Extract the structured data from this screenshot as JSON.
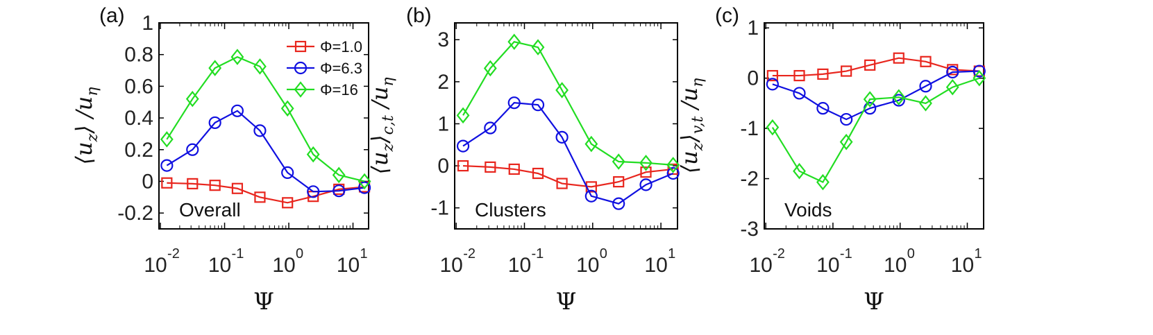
{
  "chart_data": [
    {
      "type": "line",
      "panel_label": "(a)",
      "region_label": "Overall",
      "ylabel": {
        "pre": "⟨",
        "var": "u",
        "varsub": "z",
        "mid": "⟩ /",
        "den": "u",
        "densub": "η"
      },
      "xlabel": "Ψ",
      "x": [
        0.0126,
        0.0316,
        0.0708,
        0.158,
        0.355,
        0.955,
        2.4,
        6.03,
        15.1
      ],
      "xscale": "log",
      "xlim": [
        0.0095,
        17.5
      ],
      "ylim": [
        -0.3,
        1.0
      ],
      "yticks": [
        -0.2,
        0,
        0.2,
        0.4,
        0.6,
        0.8,
        1
      ],
      "ytick_labels": [
        "-0.2",
        "0",
        "0.2",
        "0.4",
        "0.6",
        "0.8",
        "1"
      ],
      "series": [
        {
          "name": "Φ=1.0",
          "color": "#e8261e",
          "marker": "square",
          "values": [
            -0.01,
            -0.015,
            -0.025,
            -0.045,
            -0.1,
            -0.135,
            -0.095,
            -0.05,
            -0.035
          ]
        },
        {
          "name": "Φ=6.3",
          "color": "#1010e0",
          "marker": "circle",
          "values": [
            0.1,
            0.2,
            0.37,
            0.445,
            0.32,
            0.055,
            -0.065,
            -0.06,
            -0.04
          ]
        },
        {
          "name": "Φ=16",
          "color": "#22dd22",
          "marker": "diamond",
          "values": [
            0.265,
            0.52,
            0.715,
            0.785,
            0.725,
            0.46,
            0.17,
            0.04,
            0.0
          ]
        }
      ],
      "legend": {
        "placement": "top-right",
        "entries": [
          "Φ=1.0",
          "Φ=6.3",
          "Φ=16"
        ]
      }
    },
    {
      "type": "line",
      "panel_label": "(b)",
      "region_label": "Clusters",
      "ylabel": {
        "pre": "⟨",
        "var": "u",
        "varsub": "z",
        "mid": "⟩",
        "sub2": "c,t",
        "post": " /",
        "den": "u",
        "densub": "η"
      },
      "xlabel": "Ψ",
      "x": [
        0.0126,
        0.0316,
        0.0708,
        0.158,
        0.355,
        0.955,
        2.4,
        6.03,
        15.1
      ],
      "xscale": "log",
      "xlim": [
        0.0095,
        17.5
      ],
      "ylim": [
        -1.5,
        3.4
      ],
      "yticks": [
        -1,
        0,
        1,
        2,
        3
      ],
      "ytick_labels": [
        "-1",
        "0",
        "1",
        "2",
        "3"
      ],
      "series": [
        {
          "name": "Φ=1.0",
          "color": "#e8261e",
          "marker": "square",
          "values": [
            0.0,
            -0.03,
            -0.08,
            -0.18,
            -0.42,
            -0.5,
            -0.38,
            -0.15,
            -0.08
          ]
        },
        {
          "name": "Φ=6.3",
          "color": "#1010e0",
          "marker": "circle",
          "values": [
            0.47,
            0.9,
            1.5,
            1.45,
            0.68,
            -0.72,
            -0.9,
            -0.45,
            -0.18
          ]
        },
        {
          "name": "Φ=16",
          "color": "#22dd22",
          "marker": "diamond",
          "values": [
            1.2,
            2.32,
            2.95,
            2.82,
            1.8,
            0.52,
            0.1,
            0.07,
            0.02
          ]
        }
      ]
    },
    {
      "type": "line",
      "panel_label": "(c)",
      "region_label": "Voids",
      "ylabel": {
        "pre": "⟨",
        "var": "u",
        "varsub": "z",
        "mid": "⟩",
        "sub2": "v,t",
        "post": " /",
        "den": "u",
        "densub": "η"
      },
      "xlabel": "Ψ",
      "x": [
        0.0126,
        0.0316,
        0.0708,
        0.158,
        0.355,
        0.955,
        2.4,
        6.03,
        15.1
      ],
      "xscale": "log",
      "xlim": [
        0.0095,
        17.5
      ],
      "ylim": [
        -3.0,
        1.1
      ],
      "yticks": [
        -3,
        -2,
        -1,
        0,
        1
      ],
      "ytick_labels": [
        "-3",
        "-2",
        "-1",
        "0",
        "1"
      ],
      "series": [
        {
          "name": "Φ=1.0",
          "color": "#e8261e",
          "marker": "square",
          "values": [
            0.05,
            0.05,
            0.08,
            0.14,
            0.26,
            0.4,
            0.33,
            0.17,
            0.14
          ]
        },
        {
          "name": "Φ=6.3",
          "color": "#1010e0",
          "marker": "circle",
          "values": [
            -0.12,
            -0.3,
            -0.6,
            -0.82,
            -0.6,
            -0.44,
            -0.16,
            0.12,
            0.14
          ]
        },
        {
          "name": "Φ=16",
          "color": "#22dd22",
          "marker": "diamond",
          "values": [
            -0.98,
            -1.85,
            -2.07,
            -1.27,
            -0.42,
            -0.38,
            -0.5,
            -0.18,
            0.0
          ]
        }
      ]
    }
  ],
  "xtick_values": [
    0.01,
    0.1,
    1,
    10
  ],
  "xtick_labels": [
    {
      "base": "10",
      "exp": "-2"
    },
    {
      "base": "10",
      "exp": "-1"
    },
    {
      "base": "10",
      "exp": "0"
    },
    {
      "base": "10",
      "exp": "1"
    }
  ]
}
